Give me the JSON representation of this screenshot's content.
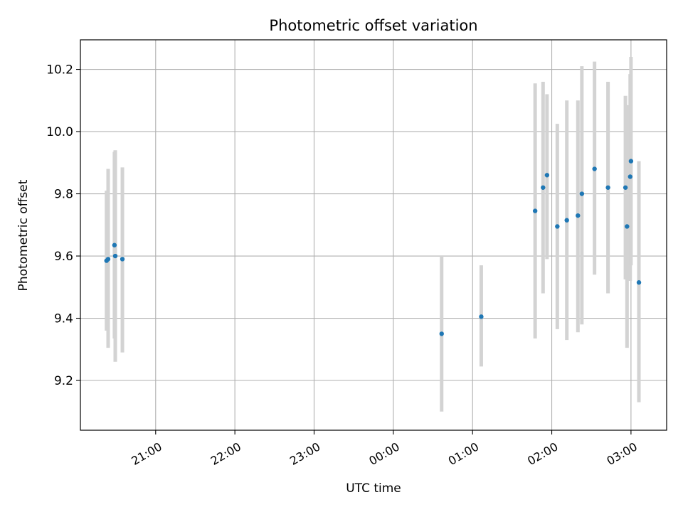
{
  "chart_data": {
    "type": "scatter",
    "title": "Photometric offset variation",
    "xlabel": "UTC time",
    "ylabel": "Photometric offset",
    "x_axis": {
      "unit": "hours",
      "range": [
        -3.95,
        3.45
      ]
    },
    "xlim": [
      "20:03",
      "03:27"
    ],
    "ylim": [
      9.04,
      10.295
    ],
    "x_ticks": [
      {
        "value": -3.0,
        "label": "21:00"
      },
      {
        "value": -2.0,
        "label": "22:00"
      },
      {
        "value": -1.0,
        "label": "23:00"
      },
      {
        "value": 0.0,
        "label": "00:00"
      },
      {
        "value": 1.0,
        "label": "01:00"
      },
      {
        "value": 2.0,
        "label": "02:00"
      },
      {
        "value": 3.0,
        "label": "03:00"
      }
    ],
    "y_ticks": [
      {
        "value": 9.2,
        "label": "9.2"
      },
      {
        "value": 9.4,
        "label": "9.4"
      },
      {
        "value": 9.6,
        "label": "9.6"
      },
      {
        "value": 9.8,
        "label": "9.8"
      },
      {
        "value": 10.0,
        "label": "10.0"
      },
      {
        "value": 10.2,
        "label": "10.2"
      }
    ],
    "grid": true,
    "points": [
      {
        "t": -3.62,
        "y": 9.585,
        "lo": 9.36,
        "hi": 9.81
      },
      {
        "t": -3.6,
        "y": 9.59,
        "lo": 9.305,
        "hi": 9.88
      },
      {
        "t": -3.52,
        "y": 9.635,
        "lo": 9.335,
        "hi": 9.935
      },
      {
        "t": -3.51,
        "y": 9.6,
        "lo": 9.26,
        "hi": 9.94
      },
      {
        "t": -3.42,
        "y": 9.59,
        "lo": 9.29,
        "hi": 9.885
      },
      {
        "t": 0.61,
        "y": 9.35,
        "lo": 9.1,
        "hi": 9.6
      },
      {
        "t": 1.11,
        "y": 9.405,
        "lo": 9.245,
        "hi": 9.57
      },
      {
        "t": 1.79,
        "y": 9.745,
        "lo": 9.335,
        "hi": 10.155
      },
      {
        "t": 1.89,
        "y": 9.82,
        "lo": 9.48,
        "hi": 10.16
      },
      {
        "t": 1.94,
        "y": 9.86,
        "lo": 9.59,
        "hi": 10.12
      },
      {
        "t": 2.07,
        "y": 9.695,
        "lo": 9.365,
        "hi": 10.025
      },
      {
        "t": 2.19,
        "y": 9.715,
        "lo": 9.33,
        "hi": 10.1
      },
      {
        "t": 2.33,
        "y": 9.73,
        "lo": 9.355,
        "hi": 10.1
      },
      {
        "t": 2.38,
        "y": 9.8,
        "lo": 9.38,
        "hi": 10.21
      },
      {
        "t": 2.54,
        "y": 9.88,
        "lo": 9.54,
        "hi": 10.225
      },
      {
        "t": 2.71,
        "y": 9.82,
        "lo": 9.48,
        "hi": 10.16
      },
      {
        "t": 2.93,
        "y": 9.82,
        "lo": 9.525,
        "hi": 10.115
      },
      {
        "t": 2.95,
        "y": 9.695,
        "lo": 9.305,
        "hi": 10.085
      },
      {
        "t": 2.99,
        "y": 9.855,
        "lo": 9.52,
        "hi": 10.185
      },
      {
        "t": 3.0,
        "y": 9.905,
        "lo": 9.57,
        "hi": 10.24
      },
      {
        "t": 3.1,
        "y": 9.515,
        "lo": 9.13,
        "hi": 9.905
      }
    ],
    "colors": {
      "point": "#1f77b4",
      "errorbar": "#d3d3d3",
      "grid": "#b0b0b0"
    }
  }
}
